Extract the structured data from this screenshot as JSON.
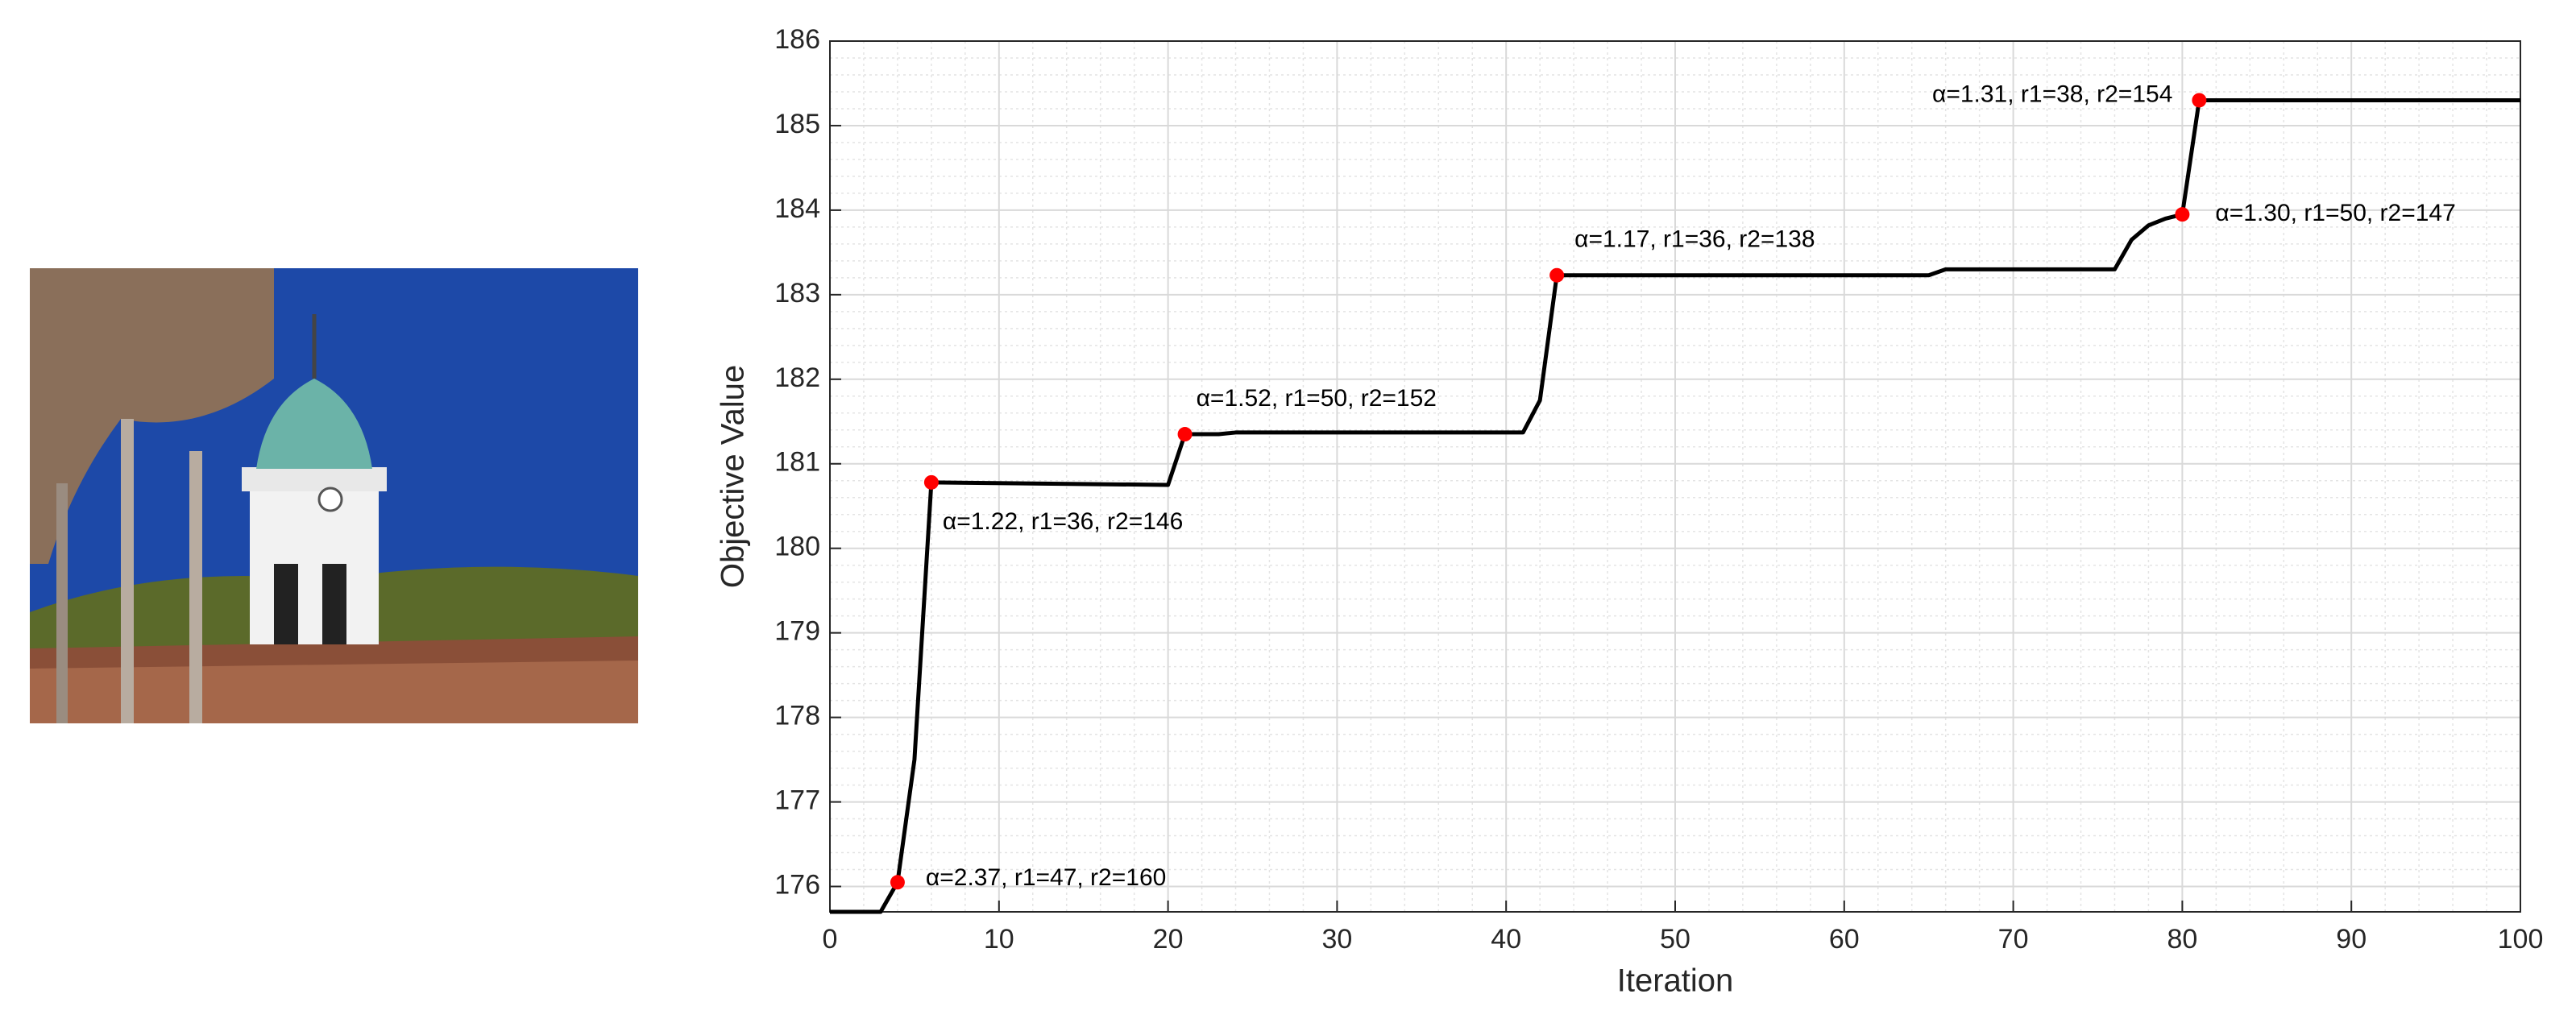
{
  "chart_data": {
    "type": "line",
    "xlabel": "Iteration",
    "ylabel": "Objective Value",
    "xlim": [
      0,
      100
    ],
    "xticks": [
      0,
      10,
      20,
      30,
      40,
      50,
      60,
      70,
      80,
      90,
      100
    ],
    "ylim": [
      175.7,
      186
    ],
    "yticks": [
      176,
      177,
      178,
      179,
      180,
      181,
      182,
      183,
      184,
      185,
      186
    ],
    "grid": true,
    "minor_grid": true,
    "series": [
      {
        "color": "#000000",
        "x": [
          0,
          3,
          4,
          5,
          6,
          20,
          21,
          23,
          24,
          41,
          42,
          43,
          65,
          66,
          76,
          77,
          78,
          79,
          80,
          81,
          100
        ],
        "values": [
          175.7,
          175.7,
          176.05,
          177.5,
          180.78,
          180.75,
          181.35,
          181.35,
          181.37,
          181.37,
          181.75,
          183.23,
          183.23,
          183.3,
          183.3,
          183.65,
          183.82,
          183.9,
          183.95,
          185.3,
          185.3
        ]
      }
    ],
    "points": {
      "color": "#ff0000",
      "x": [
        4,
        6,
        21,
        43,
        80,
        81
      ],
      "values": [
        176.05,
        180.78,
        181.35,
        183.23,
        183.95,
        185.3
      ],
      "labels": [
        "α=2.37, r1=47, r2=160",
        "α=1.22, r1=36, r2=146",
        "α=1.52, r1=50, r2=152",
        "α=1.17, r1=36, r2=138",
        "α=1.30, r1=50, r2=147",
        "α=1.31, r1=38, r2=154"
      ]
    }
  }
}
